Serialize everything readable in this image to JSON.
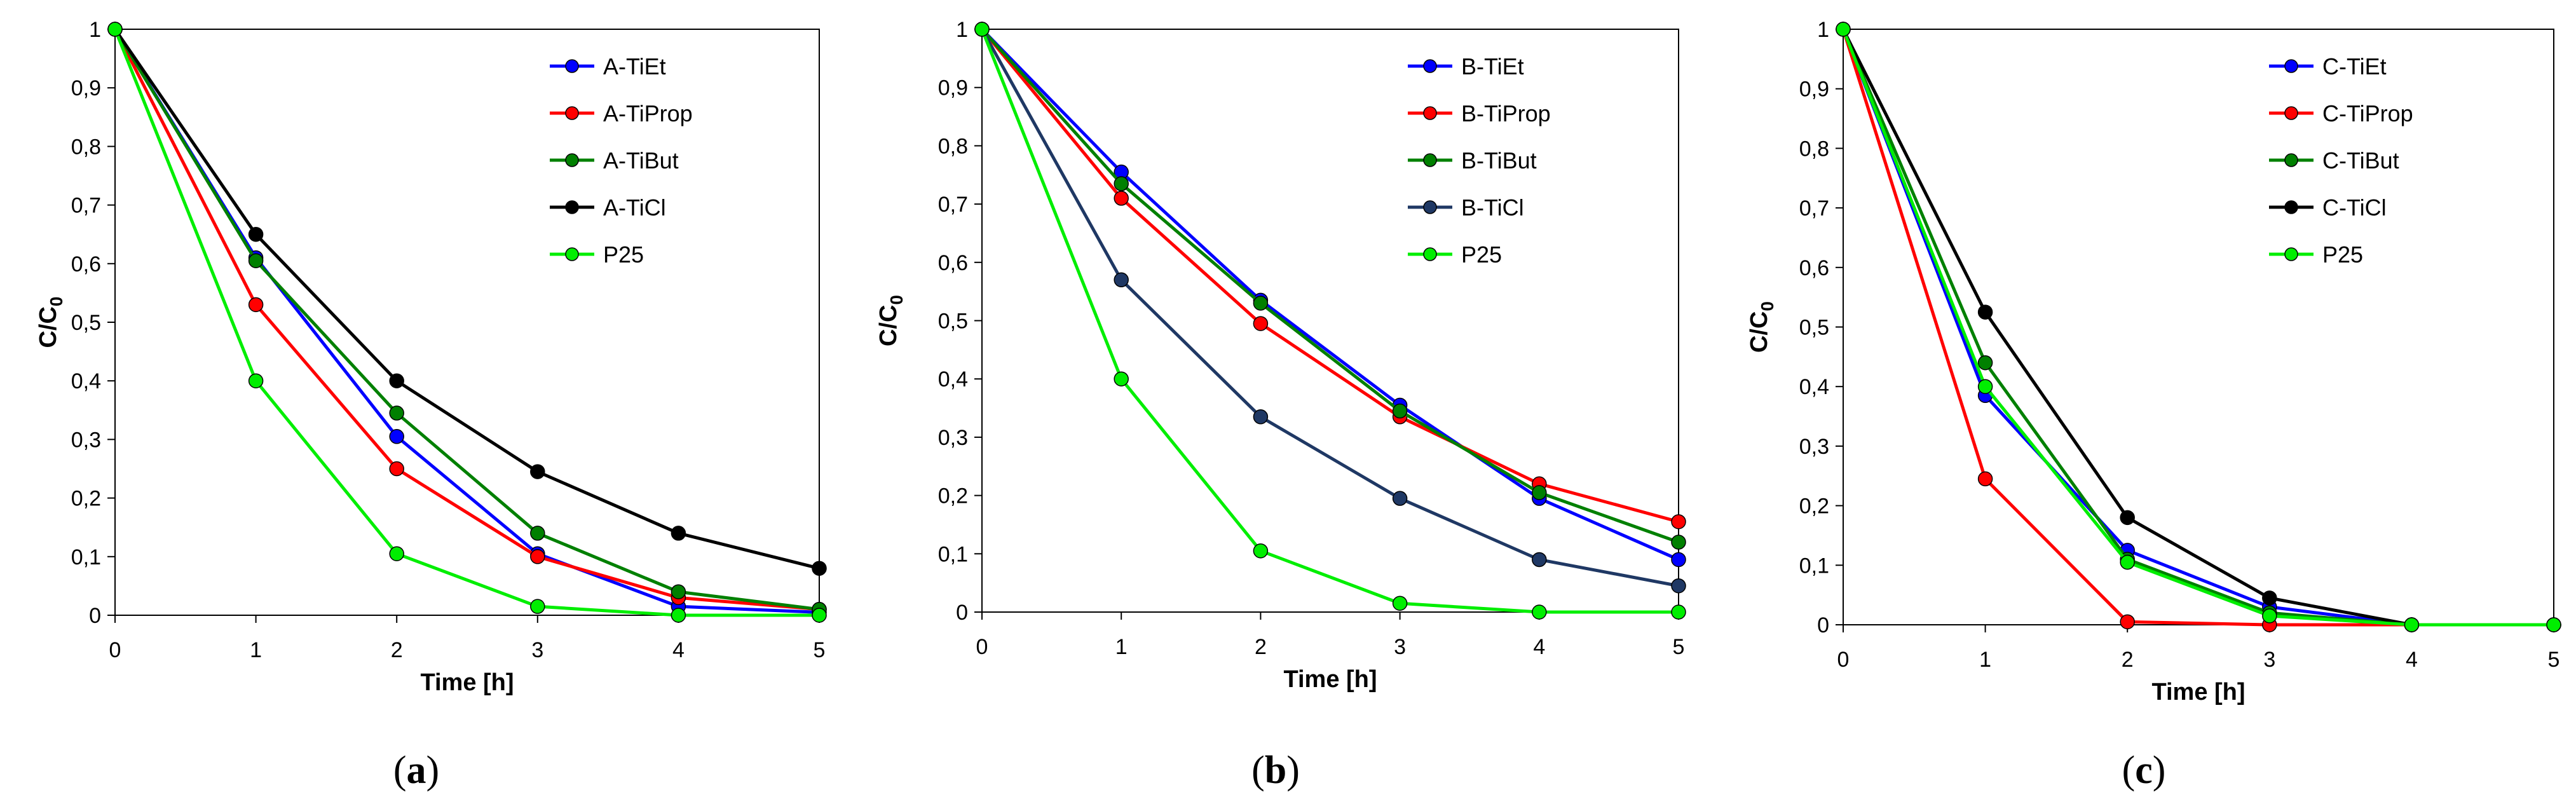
{
  "chart_data": [
    {
      "type": "line",
      "panel_label": "a",
      "xlabel": "Time [h]",
      "ylabel": "C/C",
      "ylabel_subscript": "0",
      "x": [
        0,
        1,
        2,
        3,
        4,
        5
      ],
      "xlim": [
        0,
        5
      ],
      "ylim": [
        0,
        1
      ],
      "x_ticks": [
        "0",
        "1",
        "2",
        "3",
        "4",
        "5"
      ],
      "y_ticks": [
        "0",
        "0,1",
        "0,2",
        "0,3",
        "0,4",
        "0,5",
        "0,6",
        "0,7",
        "0,8",
        "0,9",
        "1"
      ],
      "legend_position": "top-right",
      "series": [
        {
          "name": "A-TiEt",
          "color": "#0000ff",
          "values": [
            1,
            0.61,
            0.305,
            0.105,
            0.015,
            0.005
          ]
        },
        {
          "name": "A-TiProp",
          "color": "#ff0000",
          "values": [
            1,
            0.53,
            0.25,
            0.1,
            0.03,
            0.01
          ]
        },
        {
          "name": "A-TiBut",
          "color": "#008000",
          "values": [
            1,
            0.605,
            0.345,
            0.14,
            0.04,
            0.01
          ]
        },
        {
          "name": "A-TiCl",
          "color": "#000000",
          "values": [
            1,
            0.65,
            0.4,
            0.245,
            0.14,
            0.08
          ]
        },
        {
          "name": "P25",
          "color": "#00ee00",
          "values": [
            1,
            0.4,
            0.105,
            0.015,
            0,
            0
          ]
        }
      ]
    },
    {
      "type": "line",
      "panel_label": "b",
      "xlabel": "Time [h]",
      "ylabel": "C/C",
      "ylabel_subscript": "0",
      "x": [
        0,
        1,
        2,
        3,
        4,
        5
      ],
      "xlim": [
        0,
        5
      ],
      "ylim": [
        0,
        1
      ],
      "x_ticks": [
        "0",
        "1",
        "2",
        "3",
        "4",
        "5"
      ],
      "y_ticks": [
        "0",
        "0,1",
        "0,2",
        "0,3",
        "0,4",
        "0,5",
        "0,6",
        "0,7",
        "0,8",
        "0,9",
        "1"
      ],
      "legend_position": "top-right",
      "series": [
        {
          "name": "B-TiEt",
          "color": "#0000ff",
          "values": [
            1,
            0.755,
            0.535,
            0.355,
            0.195,
            0.09
          ]
        },
        {
          "name": "B-TiProp",
          "color": "#ff0000",
          "values": [
            1,
            0.71,
            0.495,
            0.335,
            0.22,
            0.155
          ]
        },
        {
          "name": "B-TiBut",
          "color": "#008000",
          "values": [
            1,
            0.735,
            0.53,
            0.345,
            0.205,
            0.12
          ]
        },
        {
          "name": "B-TiCl",
          "color": "#1f3864",
          "values": [
            1,
            0.57,
            0.335,
            0.195,
            0.09,
            0.045
          ]
        },
        {
          "name": "P25",
          "color": "#00ee00",
          "values": [
            1,
            0.4,
            0.105,
            0.015,
            0,
            0
          ]
        }
      ]
    },
    {
      "type": "line",
      "panel_label": "c",
      "xlabel": "Time [h]",
      "ylabel": "C/C",
      "ylabel_subscript": "0",
      "x": [
        0,
        1,
        2,
        3,
        4,
        5
      ],
      "xlim": [
        0,
        5
      ],
      "ylim": [
        0,
        1
      ],
      "x_ticks": [
        "0",
        "1",
        "2",
        "3",
        "4",
        "5"
      ],
      "y_ticks": [
        "0",
        "0,1",
        "0,2",
        "0,3",
        "0,4",
        "0,5",
        "0,6",
        "0,7",
        "0,8",
        "0,9",
        "1"
      ],
      "legend_position": "top-right",
      "series": [
        {
          "name": "C-TiEt",
          "color": "#0000ff",
          "values": [
            1,
            0.385,
            0.125,
            0.03,
            0,
            0
          ]
        },
        {
          "name": "C-TiProp",
          "color": "#ff0000",
          "values": [
            1,
            0.245,
            0.005,
            0,
            0,
            0
          ]
        },
        {
          "name": "C-TiBut",
          "color": "#008000",
          "values": [
            1,
            0.44,
            0.11,
            0.02,
            0,
            0
          ]
        },
        {
          "name": "C-TiCl",
          "color": "#000000",
          "values": [
            1,
            0.525,
            0.18,
            0.045,
            0,
            0
          ]
        },
        {
          "name": "P25",
          "color": "#00ee00",
          "values": [
            1,
            0.4,
            0.105,
            0.015,
            0,
            0
          ]
        }
      ]
    }
  ]
}
